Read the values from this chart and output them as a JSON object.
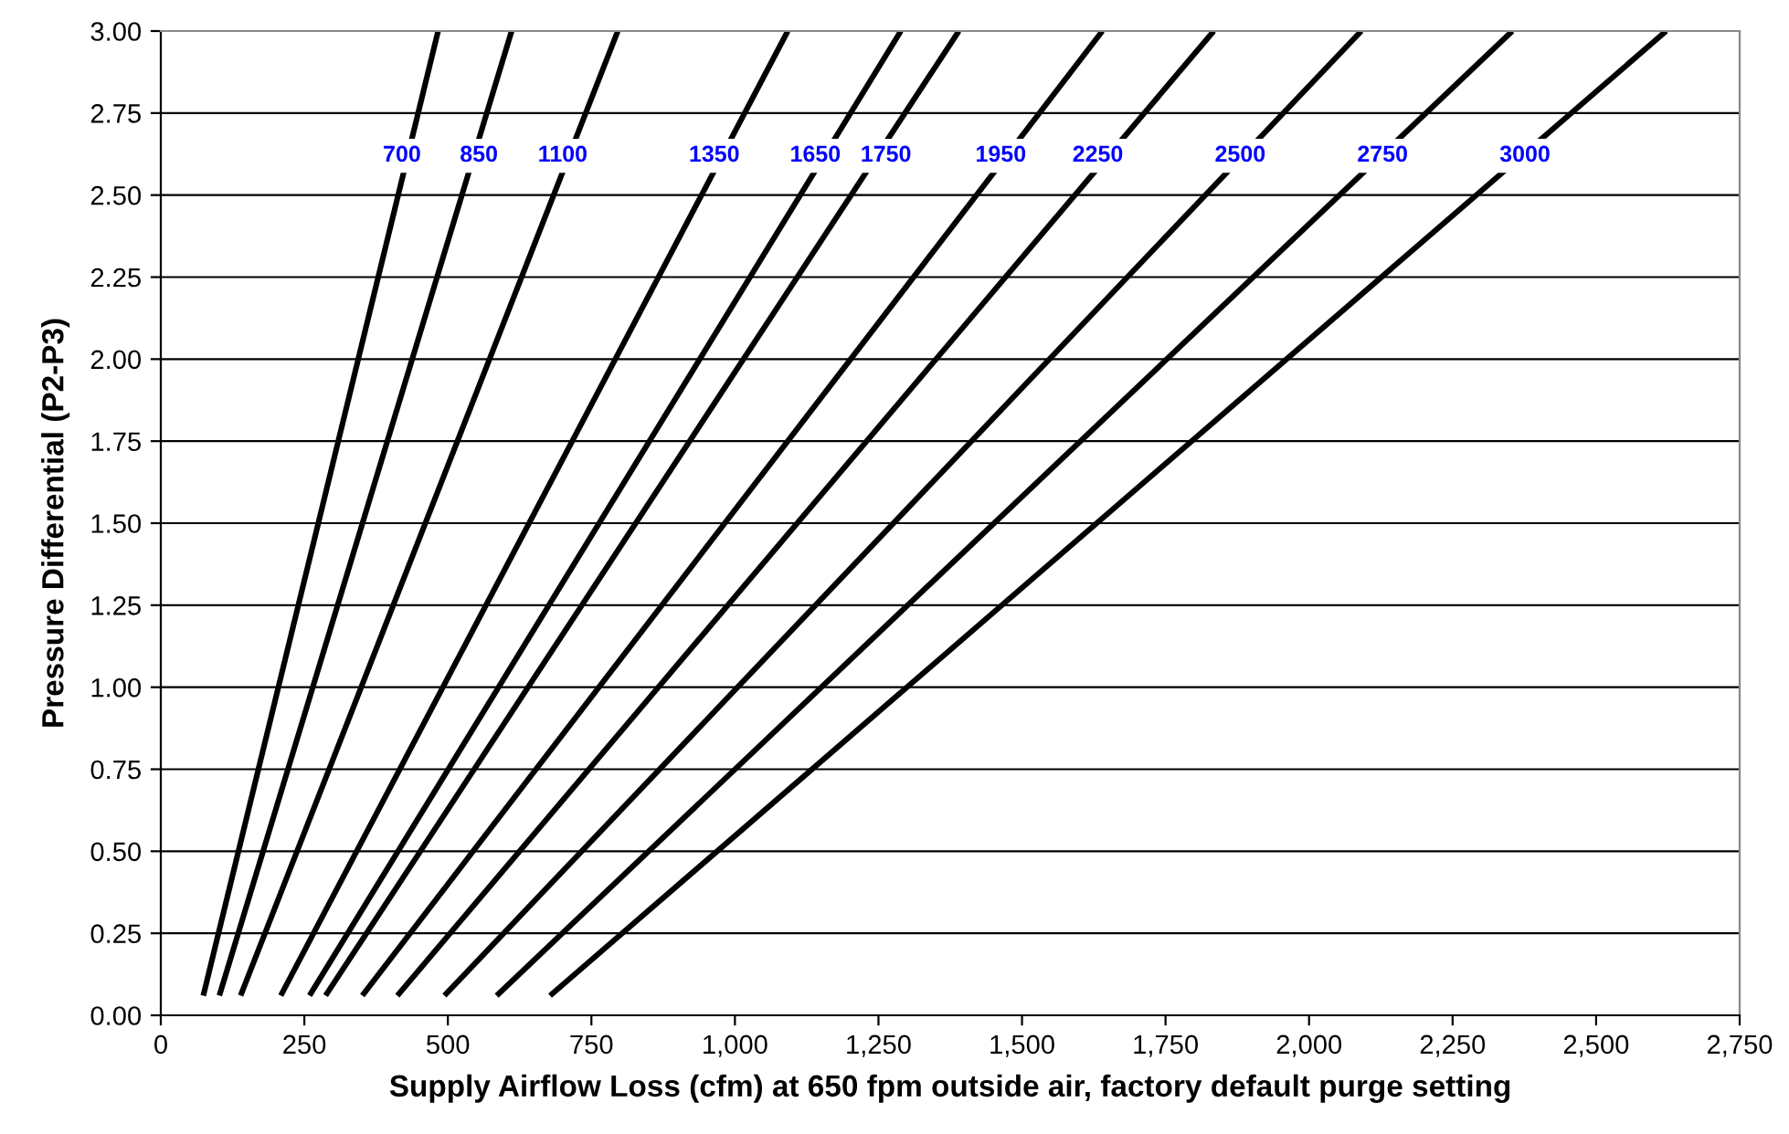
{
  "chart_data": {
    "type": "line",
    "xlabel": "Supply Airflow Loss (cfm) at 650 fpm outside air, factory default purge setting",
    "ylabel": "Pressure Differential (P2-P3)",
    "series": [
      {
        "color": "#000000",
        "x": [
          74,
          483
        ],
        "values": [
          0.06,
          3.0
        ]
      },
      {
        "color": "#000000",
        "x": [
          102,
          611
        ],
        "values": [
          0.06,
          3.0
        ]
      },
      {
        "color": "#000000",
        "x": [
          139,
          796
        ],
        "values": [
          0.06,
          3.0
        ]
      },
      {
        "color": "#000000",
        "x": [
          209,
          1092
        ],
        "values": [
          0.06,
          3.0
        ]
      },
      {
        "color": "#000000",
        "x": [
          259,
          1289
        ],
        "values": [
          0.06,
          3.0
        ]
      },
      {
        "color": "#000000",
        "x": [
          287,
          1390
        ],
        "values": [
          0.06,
          3.0
        ]
      },
      {
        "color": "#000000",
        "x": [
          351,
          1640
        ],
        "values": [
          0.06,
          3.0
        ]
      },
      {
        "color": "#000000",
        "x": [
          412,
          1834
        ],
        "values": [
          0.06,
          3.0
        ]
      },
      {
        "color": "#000000",
        "x": [
          494,
          2091
        ],
        "values": [
          0.06,
          3.0
        ]
      },
      {
        "color": "#000000",
        "x": [
          585,
          2354
        ],
        "values": [
          0.06,
          3.0
        ]
      },
      {
        "color": "#000000",
        "x": [
          678,
          2622
        ],
        "values": [
          0.06,
          3.0
        ]
      }
    ],
    "annotations": [
      {
        "text": "700",
        "x": 420,
        "y": 2.62
      },
      {
        "text": "850",
        "x": 554,
        "y": 2.62
      },
      {
        "text": "1100",
        "x": 700,
        "y": 2.62
      },
      {
        "text": "1350",
        "x": 964,
        "y": 2.62
      },
      {
        "text": "1650",
        "x": 1140,
        "y": 2.62
      },
      {
        "text": "1750",
        "x": 1263,
        "y": 2.62
      },
      {
        "text": "1950",
        "x": 1463,
        "y": 2.62
      },
      {
        "text": "2250",
        "x": 1632,
        "y": 2.62
      },
      {
        "text": "2500",
        "x": 1880,
        "y": 2.62
      },
      {
        "text": "2750",
        "x": 2128,
        "y": 2.62
      },
      {
        "text": "3000",
        "x": 2376,
        "y": 2.62
      }
    ],
    "xlim": [
      0,
      2750
    ],
    "xticks": [
      0,
      250,
      500,
      750,
      {
        "value": 1000,
        "label": "1,000"
      },
      {
        "value": 1250,
        "label": "1,250"
      },
      {
        "value": 1500,
        "label": "1,500"
      },
      {
        "value": 1750,
        "label": "1,750"
      },
      {
        "value": 2000,
        "label": "2,000"
      },
      {
        "value": 2250,
        "label": "2,250"
      },
      {
        "value": 2500,
        "label": "2,500"
      },
      {
        "value": 2750,
        "label": "2,750"
      }
    ],
    "ylim": [
      0,
      3
    ],
    "yticks": [
      {
        "value": 0,
        "label": "0.00"
      },
      {
        "value": 0.25,
        "label": "0.25"
      },
      {
        "value": 0.5,
        "label": "0.50"
      },
      {
        "value": 0.75,
        "label": "0.75"
      },
      {
        "value": 1,
        "label": "1.00"
      },
      {
        "value": 1.25,
        "label": "1.25"
      },
      {
        "value": 1.5,
        "label": "1.50"
      },
      {
        "value": 1.75,
        "label": "1.75"
      },
      {
        "value": 2,
        "label": "2.00"
      },
      {
        "value": 2.25,
        "label": "2.25"
      },
      {
        "value": 2.5,
        "label": "2.50"
      },
      {
        "value": 2.75,
        "label": "2.75"
      },
      {
        "value": 3,
        "label": "3.00"
      }
    ],
    "grid": "y",
    "marker": "none",
    "line_style": "solid"
  }
}
